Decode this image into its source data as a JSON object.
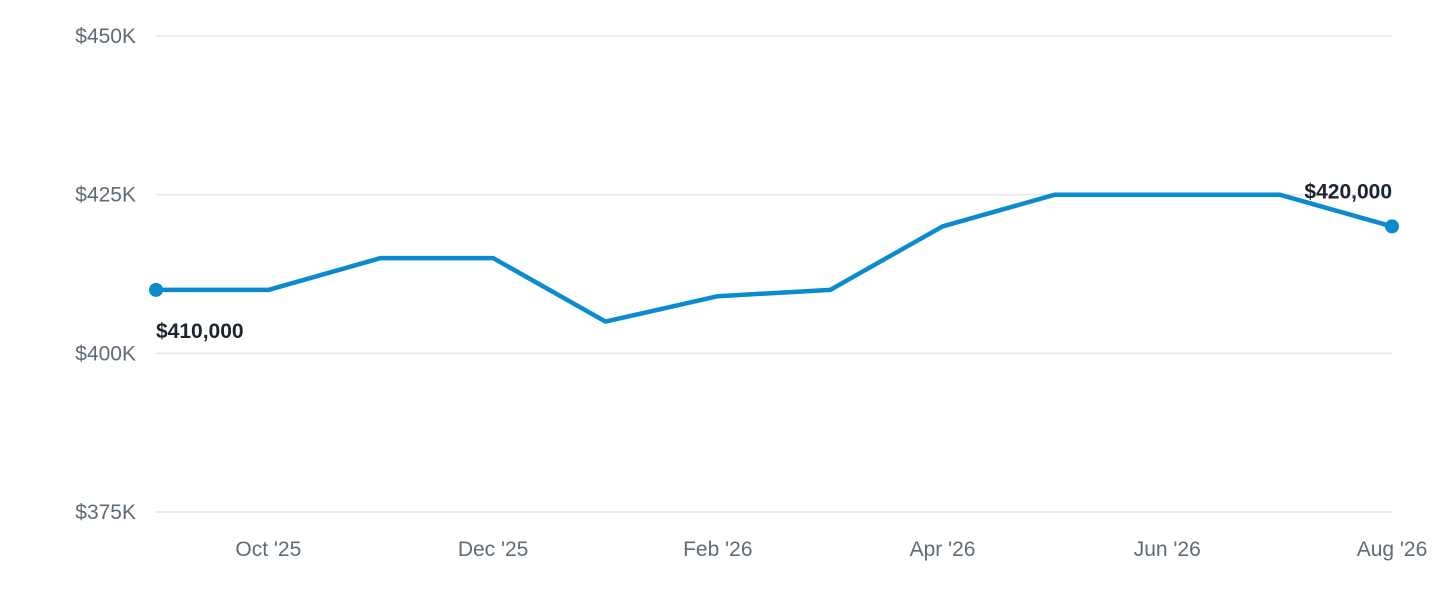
{
  "chart_data": {
    "type": "line",
    "x": [
      "2025-09",
      "2025-10",
      "2025-11",
      "2025-12",
      "2026-01",
      "2026-02",
      "2026-03",
      "2026-04",
      "2026-05",
      "2026-06",
      "2026-07",
      "2026-08"
    ],
    "series": [
      {
        "values": [
          410000,
          410000,
          415000,
          415000,
          405000,
          409000,
          410000,
          420000,
          425000,
          425000,
          425000,
          420000
        ],
        "color": "#0a8bcf"
      }
    ],
    "x_ticks": [
      {
        "x": "2025-10",
        "label": "Oct '25"
      },
      {
        "x": "2025-12",
        "label": "Dec '25"
      },
      {
        "x": "2026-02",
        "label": "Feb '26"
      },
      {
        "x": "2026-04",
        "label": "Apr '26"
      },
      {
        "x": "2026-06",
        "label": "Jun '26"
      },
      {
        "x": "2026-08",
        "label": "Aug '26"
      }
    ],
    "y_ticks": [
      {
        "value": 375000,
        "label": "$375K"
      },
      {
        "value": 400000,
        "label": "$400K"
      },
      {
        "value": 425000,
        "label": "$425K"
      },
      {
        "value": 450000,
        "label": "$450K"
      }
    ],
    "ylim": [
      375000,
      450000
    ],
    "grid": true,
    "annotations": [
      {
        "x": "2025-09",
        "value": 410000,
        "text": "$410,000",
        "placement": "below"
      },
      {
        "x": "2026-08",
        "value": 420000,
        "text": "$420,000",
        "placement": "above"
      }
    ],
    "title": "",
    "xlabel": "",
    "ylabel": ""
  }
}
